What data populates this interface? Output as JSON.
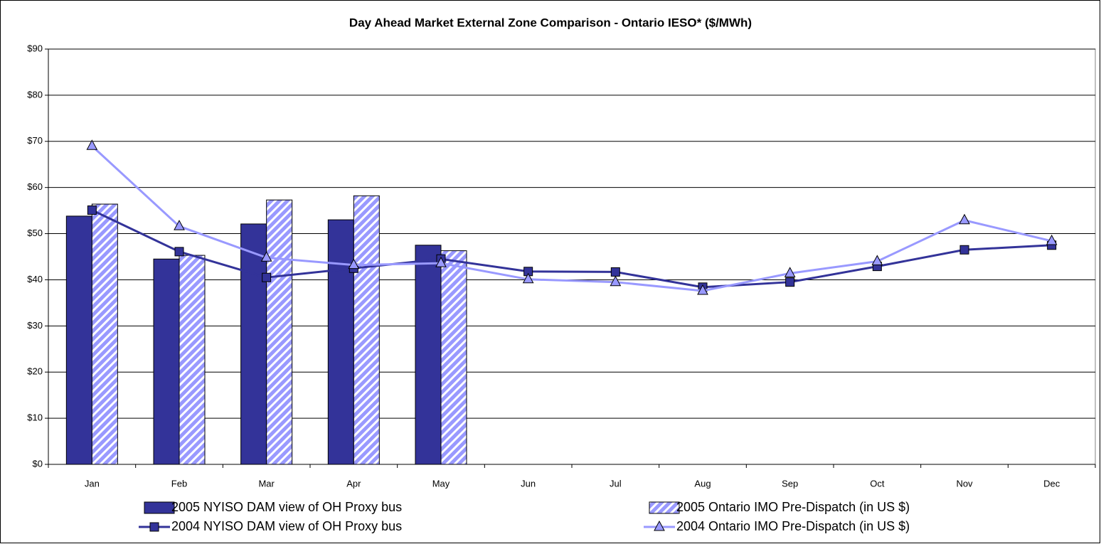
{
  "chart_data": {
    "type": "bar",
    "title": "Day Ahead Market External Zone Comparison - Ontario IESO* ($/MWh)",
    "categories": [
      "Jan",
      "Feb",
      "Mar",
      "Apr",
      "May",
      "Jun",
      "Jul",
      "Aug",
      "Sep",
      "Oct",
      "Nov",
      "Dec"
    ],
    "series": [
      {
        "name": "2005 NYISO DAM view of OH Proxy bus",
        "type": "bar",
        "color": "#333399",
        "pattern": "solid",
        "values": [
          53.8,
          44.5,
          52.1,
          53.0,
          47.5,
          null,
          null,
          null,
          null,
          null,
          null,
          null
        ]
      },
      {
        "name": "2005 Ontario IMO Pre-Dispatch (in US $)",
        "type": "bar",
        "color": "#9999ff",
        "pattern": "hatch",
        "values": [
          56.4,
          45.3,
          57.3,
          58.2,
          46.3,
          null,
          null,
          null,
          null,
          null,
          null,
          null
        ]
      },
      {
        "name": "2004 NYISO DAM view of OH Proxy bus",
        "type": "line",
        "color": "#333399",
        "marker": "square",
        "values": [
          55.1,
          46.1,
          40.5,
          42.5,
          44.5,
          41.8,
          41.7,
          38.4,
          39.5,
          42.9,
          46.5,
          47.5
        ]
      },
      {
        "name": "2004 Ontario IMO Pre-Dispatch (in US $)",
        "type": "line",
        "color": "#9999ff",
        "marker": "triangle",
        "values": [
          69.0,
          51.6,
          44.8,
          43.2,
          43.6,
          40.1,
          39.5,
          37.6,
          41.4,
          44.0,
          52.9,
          48.4
        ]
      }
    ],
    "ylim": [
      0,
      90
    ],
    "yticks": [
      {
        "value": 0,
        "label": "$0"
      },
      {
        "value": 10,
        "label": "$10"
      },
      {
        "value": 20,
        "label": "$20"
      },
      {
        "value": 30,
        "label": "$30"
      },
      {
        "value": 40,
        "label": "$40"
      },
      {
        "value": 50,
        "label": "$50"
      },
      {
        "value": 60,
        "label": "$60"
      },
      {
        "value": 70,
        "label": "$70"
      },
      {
        "value": 80,
        "label": "$80"
      },
      {
        "value": 90,
        "label": "$90"
      }
    ],
    "grid": true,
    "legend": "bottom"
  }
}
